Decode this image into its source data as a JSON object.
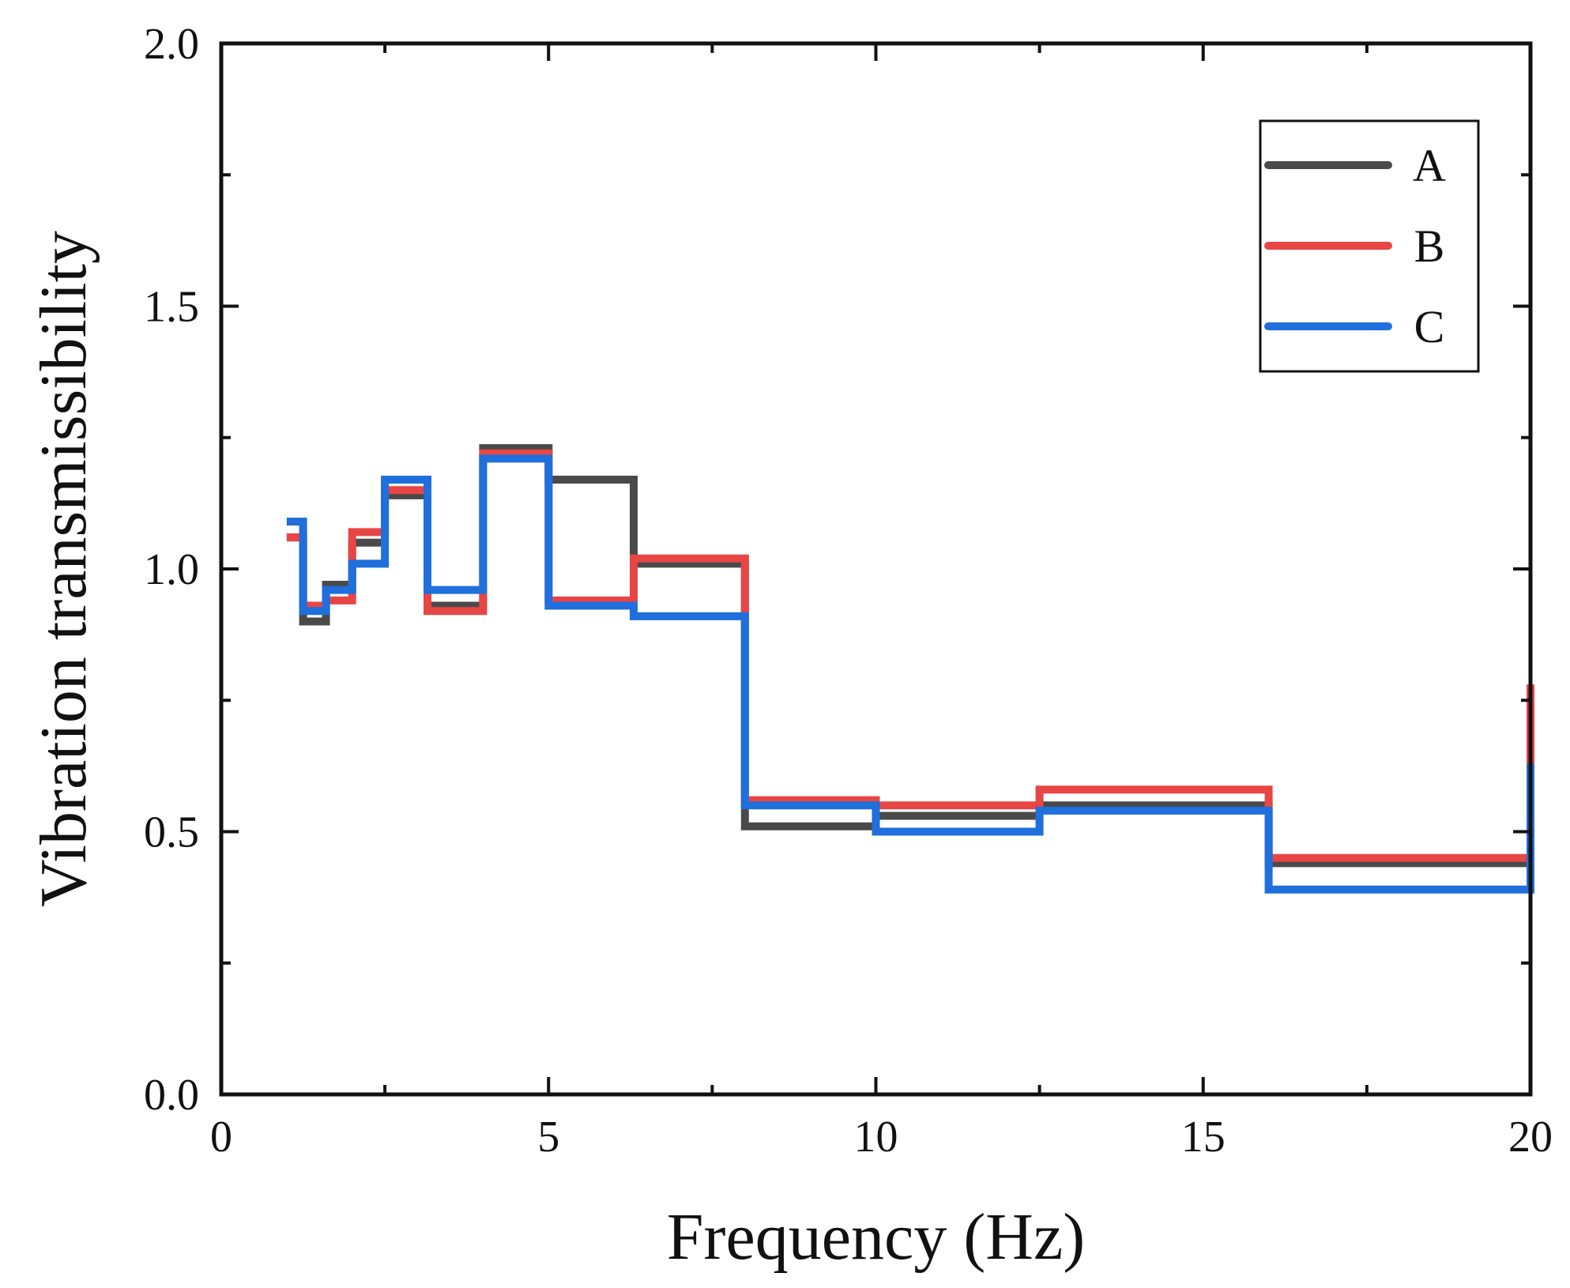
{
  "chart_data": {
    "type": "line",
    "style": "step",
    "title": "",
    "xlabel": "Frequency (Hz)",
    "ylabel": "Vibration transmissibility",
    "xlim": [
      0,
      20
    ],
    "ylim": [
      0.0,
      2.0
    ],
    "xticks": [
      0,
      5,
      10,
      15,
      20
    ],
    "xtick_labels": [
      "0",
      "5",
      "10",
      "15",
      "20"
    ],
    "yticks": [
      0.0,
      0.5,
      1.0,
      1.5,
      2.0
    ],
    "ytick_labels": [
      "0.0",
      "0.5",
      "1.0",
      "1.5",
      "2.0"
    ],
    "legend_position": "top-right",
    "series": [
      {
        "name": "A",
        "color": "#4a4a4a",
        "x": [
          1,
          1.25,
          1.6,
          2,
          2.5,
          3.15,
          4,
          5,
          6.3,
          8,
          10,
          12.5,
          16,
          20
        ],
        "values": [
          1.06,
          0.9,
          0.97,
          1.05,
          1.14,
          0.93,
          1.23,
          1.17,
          1.01,
          0.51,
          0.53,
          0.55,
          0.44,
          0.44
        ]
      },
      {
        "name": "B",
        "color": "#e84545",
        "x": [
          1,
          1.25,
          1.6,
          2,
          2.5,
          3.15,
          4,
          5,
          6.3,
          8,
          10,
          12.5,
          16,
          20
        ],
        "values": [
          1.06,
          0.93,
          0.94,
          1.07,
          1.15,
          0.92,
          1.22,
          0.94,
          1.02,
          0.56,
          0.55,
          0.58,
          0.45,
          0.78
        ]
      },
      {
        "name": "C",
        "color": "#1f6fdc",
        "x": [
          1,
          1.25,
          1.6,
          2,
          2.5,
          3.15,
          4,
          5,
          6.3,
          8,
          10,
          12.5,
          16,
          20
        ],
        "values": [
          1.09,
          0.92,
          0.96,
          1.01,
          1.17,
          0.96,
          1.21,
          0.93,
          0.91,
          0.55,
          0.5,
          0.54,
          0.39,
          0.63
        ]
      }
    ]
  }
}
